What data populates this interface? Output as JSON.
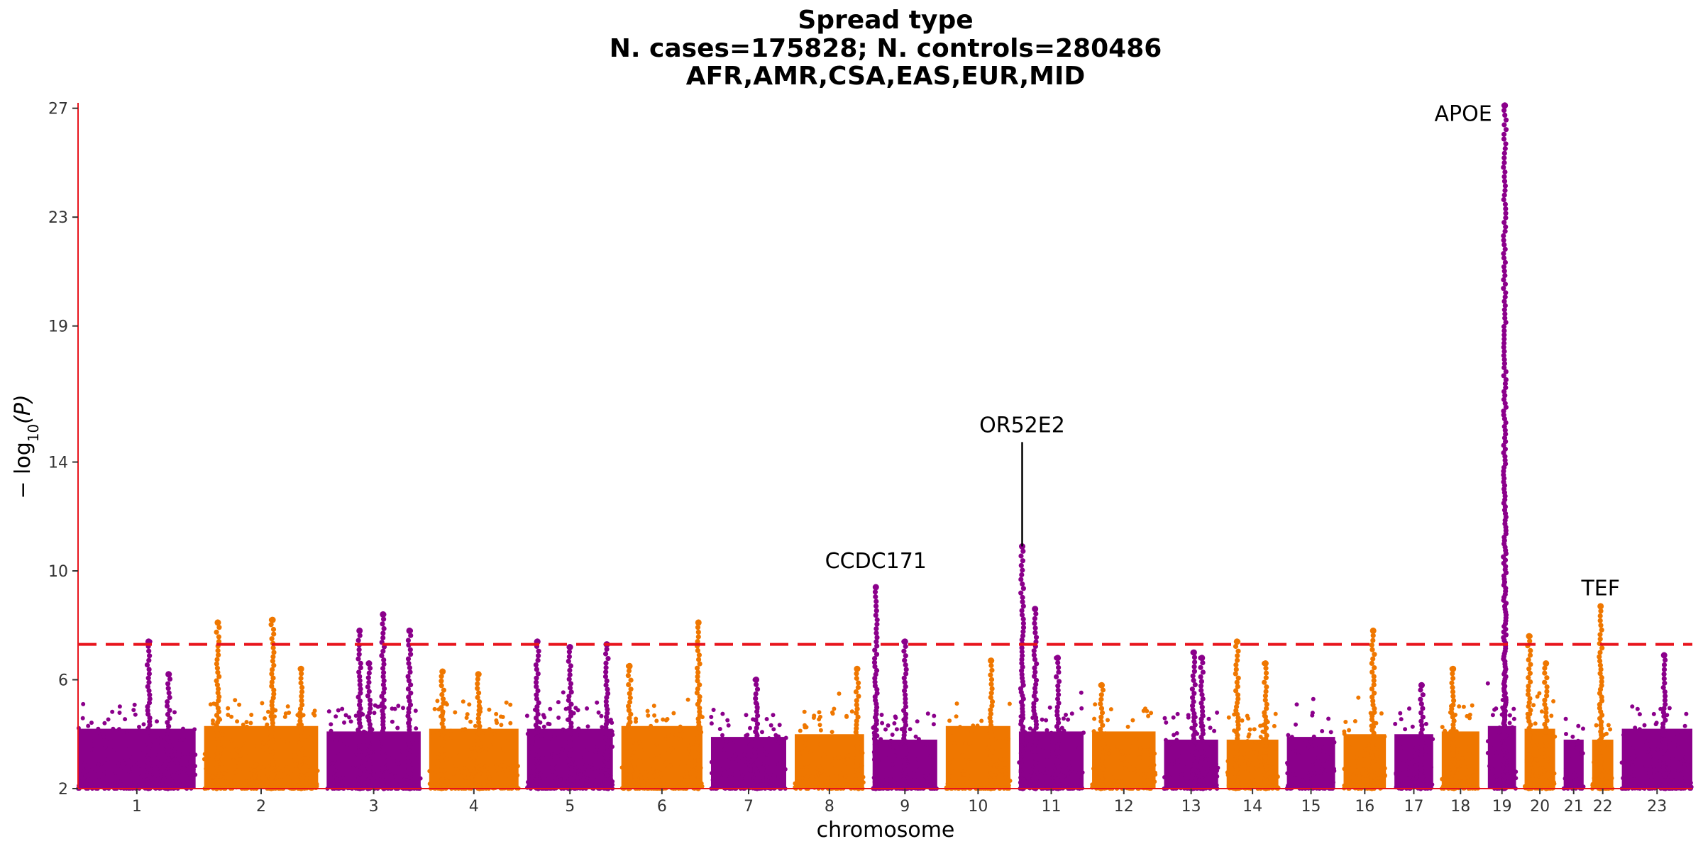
{
  "chart_data": {
    "type": "scatter",
    "subtype": "manhattan",
    "title_lines": [
      "Spread type",
      "N. cases=175828; N. controls=280486",
      "AFR,AMR,CSA,EAS,EUR,MID"
    ],
    "xlabel": "chromosome",
    "ylabel_main": "− log",
    "ylabel_sub": "10",
    "ylabel_arg": "(P)",
    "ylim": [
      2,
      27.2
    ],
    "yticks": [
      2,
      6,
      10,
      14,
      19,
      23,
      27
    ],
    "significance_threshold": 7.3,
    "colors": {
      "odd": "#8b008b",
      "even": "#ef7700",
      "threshold": "#e8141c",
      "axis": "#e8141c"
    },
    "chromosomes": [
      {
        "label": "1",
        "length": 1.0,
        "base": 5.2,
        "peaks": [
          {
            "pos": 0.6,
            "y": 7.4
          },
          {
            "pos": 0.77,
            "y": 6.2
          }
        ]
      },
      {
        "label": "2",
        "length": 0.97,
        "base": 5.3,
        "peaks": [
          {
            "pos": 0.12,
            "y": 8.1
          },
          {
            "pos": 0.6,
            "y": 8.2
          },
          {
            "pos": 0.85,
            "y": 6.4
          }
        ]
      },
      {
        "label": "3",
        "length": 0.8,
        "base": 5.1,
        "peaks": [
          {
            "pos": 0.35,
            "y": 7.8
          },
          {
            "pos": 0.45,
            "y": 6.6
          },
          {
            "pos": 0.6,
            "y": 8.4
          },
          {
            "pos": 0.88,
            "y": 7.8
          }
        ]
      },
      {
        "label": "4",
        "length": 0.76,
        "base": 5.2,
        "peaks": [
          {
            "pos": 0.15,
            "y": 6.3
          },
          {
            "pos": 0.55,
            "y": 6.2
          }
        ]
      },
      {
        "label": "5",
        "length": 0.73,
        "base": 5.2,
        "peaks": [
          {
            "pos": 0.12,
            "y": 7.4
          },
          {
            "pos": 0.5,
            "y": 7.2
          },
          {
            "pos": 0.93,
            "y": 7.3
          }
        ]
      },
      {
        "label": "6",
        "length": 0.69,
        "base": 5.3,
        "peaks": [
          {
            "pos": 0.1,
            "y": 6.5
          },
          {
            "pos": 0.95,
            "y": 8.1
          }
        ]
      },
      {
        "label": "7",
        "length": 0.64,
        "base": 4.9,
        "peaks": [
          {
            "pos": 0.6,
            "y": 6.0
          }
        ]
      },
      {
        "label": "8",
        "length": 0.59,
        "base": 5.0,
        "peaks": [
          {
            "pos": 0.9,
            "y": 6.4
          }
        ]
      },
      {
        "label": "9",
        "length": 0.55,
        "base": 4.8,
        "peaks": [
          {
            "pos": 0.05,
            "y": 9.4
          },
          {
            "pos": 0.5,
            "y": 7.4
          }
        ]
      },
      {
        "label": "10",
        "length": 0.55,
        "base": 5.3,
        "peaks": [
          {
            "pos": 0.7,
            "y": 6.7
          }
        ]
      },
      {
        "label": "11",
        "length": 0.55,
        "base": 5.1,
        "peaks": [
          {
            "pos": 0.05,
            "y": 10.9
          },
          {
            "pos": 0.25,
            "y": 8.6
          },
          {
            "pos": 0.6,
            "y": 6.8
          }
        ]
      },
      {
        "label": "12",
        "length": 0.54,
        "base": 5.1,
        "peaks": [
          {
            "pos": 0.15,
            "y": 5.8
          }
        ]
      },
      {
        "label": "13",
        "length": 0.46,
        "base": 4.8,
        "peaks": [
          {
            "pos": 0.55,
            "y": 7.0
          },
          {
            "pos": 0.7,
            "y": 6.8
          }
        ]
      },
      {
        "label": "14",
        "length": 0.44,
        "base": 4.8,
        "peaks": [
          {
            "pos": 0.2,
            "y": 7.4
          },
          {
            "pos": 0.75,
            "y": 6.6
          }
        ]
      },
      {
        "label": "15",
        "length": 0.41,
        "base": 4.9,
        "peaks": []
      },
      {
        "label": "16",
        "length": 0.36,
        "base": 5.0,
        "peaks": [
          {
            "pos": 0.7,
            "y": 7.8
          }
        ]
      },
      {
        "label": "17",
        "length": 0.33,
        "base": 5.0,
        "peaks": [
          {
            "pos": 0.7,
            "y": 5.8
          }
        ]
      },
      {
        "label": "18",
        "length": 0.32,
        "base": 5.1,
        "peaks": [
          {
            "pos": 0.3,
            "y": 6.4
          }
        ]
      },
      {
        "label": "19",
        "length": 0.24,
        "base": 5.3,
        "peaks": [
          {
            "pos": 0.6,
            "y": 27.1
          }
        ]
      },
      {
        "label": "20",
        "length": 0.26,
        "base": 5.2,
        "peaks": [
          {
            "pos": 0.15,
            "y": 7.6
          },
          {
            "pos": 0.7,
            "y": 6.6
          }
        ]
      },
      {
        "label": "21",
        "length": 0.17,
        "base": 4.8,
        "peaks": []
      },
      {
        "label": "22",
        "length": 0.18,
        "base": 4.8,
        "peaks": [
          {
            "pos": 0.4,
            "y": 8.7
          }
        ]
      },
      {
        "label": "23",
        "length": 0.6,
        "base": 5.2,
        "peaks": [
          {
            "pos": 0.6,
            "y": 6.9
          }
        ]
      }
    ],
    "annotations": [
      {
        "label": "CCDC171",
        "chrom": "9",
        "pos": 0.05,
        "y": 9.4,
        "label_y": 10.1,
        "leader": false
      },
      {
        "label": "OR52E2",
        "chrom": "11",
        "pos": 0.05,
        "y": 10.9,
        "label_y": 15.1,
        "leader": true
      },
      {
        "label": "APOE",
        "chrom": "19",
        "pos": 0.6,
        "y": 27.1,
        "label_y": 26.8,
        "leader": false,
        "side": "left"
      },
      {
        "label": "TEF",
        "chrom": "22",
        "pos": 0.4,
        "y": 8.7,
        "label_y": 9.1,
        "leader": false
      }
    ]
  }
}
